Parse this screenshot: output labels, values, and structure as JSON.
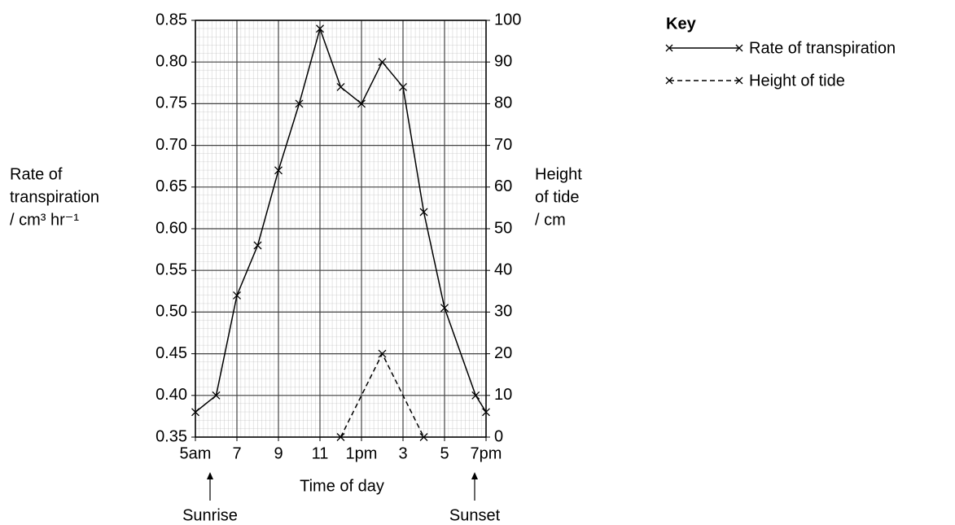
{
  "chart_data": {
    "type": "line",
    "xlabel": "Time of day",
    "ylabel": [
      "Rate of",
      "transpiration",
      "/ cm³ hr⁻¹"
    ],
    "y2label": [
      "Height",
      "of tide",
      "/ cm"
    ],
    "legend_title": "Key",
    "legend": "top-right",
    "grid": true,
    "annotations": [
      "Sunrise",
      "Sunset"
    ],
    "xlim": [
      5,
      19
    ],
    "xticks": [
      {
        "value": 5,
        "label": "5am"
      },
      7,
      9,
      11,
      {
        "value": 13,
        "label": "1pm"
      },
      {
        "value": 15,
        "label": "3"
      },
      {
        "value": 17,
        "label": "5"
      },
      {
        "value": 19,
        "label": "7pm"
      }
    ],
    "ylim": [
      0.35,
      0.85
    ],
    "yticks": [
      0.35,
      {
        "value": 0.4,
        "label": "0.40"
      },
      0.45,
      {
        "value": 0.5,
        "label": "0.50"
      },
      0.55,
      {
        "value": 0.6,
        "label": "0.60"
      },
      0.65,
      {
        "value": 0.7,
        "label": "0.70"
      },
      0.75,
      {
        "value": 0.8,
        "label": "0.80"
      },
      0.85
    ],
    "y2lim": [
      0,
      100
    ],
    "y2ticks": [
      0,
      10,
      20,
      30,
      40,
      50,
      60,
      70,
      80,
      90,
      100
    ],
    "series": [
      {
        "name": "Rate of transpiration",
        "color": "#000000",
        "line_style": "solid",
        "x": [
          5,
          6,
          7,
          8,
          9,
          10,
          11,
          12,
          13,
          14,
          15,
          16,
          17,
          18.5,
          19
        ],
        "values": [
          0.38,
          0.4,
          0.52,
          0.58,
          0.67,
          0.75,
          0.84,
          0.77,
          0.75,
          0.8,
          0.77,
          0.62,
          0.505,
          0.4,
          0.38
        ]
      },
      {
        "name": "Height of tide",
        "color": "#000000",
        "line_style": "dashed",
        "axis": "y2",
        "x": [
          12,
          14,
          16
        ],
        "values": [
          0,
          20,
          0
        ]
      }
    ]
  }
}
